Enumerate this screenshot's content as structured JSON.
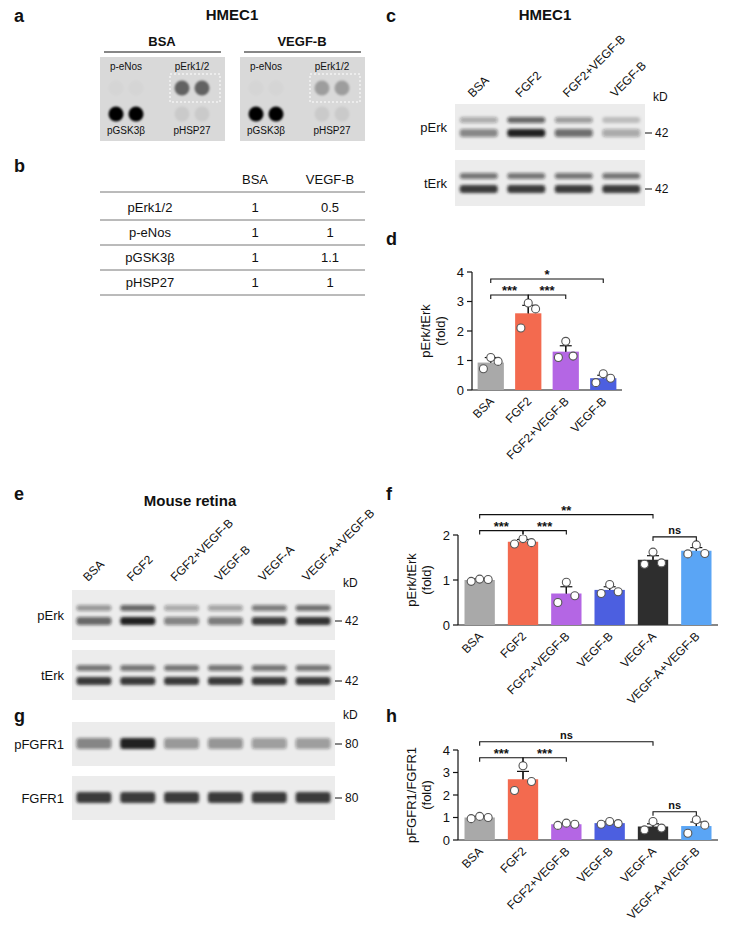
{
  "figure": {
    "a": {
      "panel_label": "a",
      "title": "HMEC1",
      "conditions": [
        "BSA",
        "VEGF-B"
      ],
      "spots": [
        "p-eNos",
        "pErk1/2",
        "pGSK3β",
        "pHSP27"
      ]
    },
    "b": {
      "panel_label": "b",
      "columns": [
        "BSA",
        "VEGF-B"
      ],
      "rows": [
        {
          "label": "pErk1/2",
          "values": [
            1,
            0.5
          ]
        },
        {
          "label": "p-eNos",
          "values": [
            1,
            1
          ]
        },
        {
          "label": "pGSK3β",
          "values": [
            1,
            1.1
          ]
        },
        {
          "label": "pHSP27",
          "values": [
            1,
            1
          ]
        }
      ]
    },
    "c": {
      "panel_label": "c",
      "title": "HMEC1",
      "lanes": [
        "BSA",
        "FGF2",
        "FGF2+VEGF-B",
        "VEGF-B"
      ],
      "rows": [
        {
          "label": "pErk",
          "size": 42
        },
        {
          "label": "tErk",
          "size": 42
        }
      ],
      "unit": "kD"
    },
    "e": {
      "panel_label": "e",
      "title": "Mouse retina",
      "lanes": [
        "BSA",
        "FGF2",
        "FGF2+VEGF-B",
        "VEGF-B",
        "VEGF-A",
        "VEGF-A+VEGF-B"
      ],
      "rows": [
        {
          "label": "pErk",
          "size": 42
        },
        {
          "label": "tErk",
          "size": 42
        }
      ],
      "unit": "kD"
    },
    "g": {
      "panel_label": "g",
      "rows": [
        {
          "label": "pFGFR1",
          "size": 80
        },
        {
          "label": "FGFR1",
          "size": 80
        }
      ],
      "unit": "kD"
    }
  },
  "chart_data": [
    {
      "type": "bar",
      "panel_label": "d",
      "y_label": [
        "pErk/tErk",
        "(fold)"
      ],
      "categories": [
        "BSA",
        "FGF2",
        "FGF2+VEGF-B",
        "VEGF-B"
      ],
      "values": [
        0.93,
        2.6,
        1.3,
        0.4
      ],
      "errors": [
        0.17,
        0.27,
        0.2,
        0.1
      ],
      "points": [
        [
          0.72,
          1.1,
          0.97
        ],
        [
          2.1,
          2.95,
          2.75
        ],
        [
          1.1,
          1.65,
          1.15
        ],
        [
          0.25,
          0.55,
          0.4
        ]
      ],
      "colors": [
        "#a9a9a9",
        "#f36a4f",
        "#b466e4",
        "#4c5fe0"
      ],
      "ylim": [
        0,
        4
      ],
      "yticks": [
        0,
        1,
        2,
        3,
        4
      ],
      "annotations": [
        {
          "between": [
            "BSA",
            "FGF2"
          ],
          "text": "***"
        },
        {
          "between": [
            "FGF2",
            "FGF2+VEGF-B"
          ],
          "text": "***"
        },
        {
          "between": [
            "BSA",
            "VEGF-B"
          ],
          "text": "*"
        }
      ]
    },
    {
      "type": "bar",
      "panel_label": "f",
      "y_label": [
        "pErk/tErk",
        "(fold)"
      ],
      "categories": [
        "BSA",
        "FGF2",
        "FGF2+VEGF-B",
        "VEGF-B",
        "VEGF-A",
        "VEGF-A+VEGF-B"
      ],
      "values": [
        1.0,
        1.85,
        0.7,
        0.78,
        1.45,
        1.65
      ],
      "errors": [
        0.03,
        0.05,
        0.15,
        0.07,
        0.09,
        0.07
      ],
      "points": [
        [
          0.97,
          1.02,
          1.01
        ],
        [
          1.8,
          1.92,
          1.83
        ],
        [
          0.5,
          0.95,
          0.65
        ],
        [
          0.7,
          0.9,
          0.74
        ],
        [
          1.35,
          1.62,
          1.38
        ],
        [
          1.58,
          1.78,
          1.59
        ]
      ],
      "colors": [
        "#a9a9a9",
        "#f36a4f",
        "#b466e4",
        "#4c5fe0",
        "#2e2e2e",
        "#5aa5f5"
      ],
      "ylim": [
        0,
        2
      ],
      "yticks": [
        0,
        1,
        2
      ],
      "annotations": [
        {
          "between": [
            "BSA",
            "FGF2"
          ],
          "text": "***"
        },
        {
          "between": [
            "FGF2",
            "FGF2+VEGF-B"
          ],
          "text": "***"
        },
        {
          "between": [
            "BSA",
            "VEGF-A"
          ],
          "text": "**"
        },
        {
          "between": [
            "VEGF-A",
            "VEGF-A+VEGF-B"
          ],
          "text": "ns"
        }
      ]
    },
    {
      "type": "bar",
      "panel_label": "h",
      "y_label": [
        "pFGFR1/FGFR1",
        "(fold)"
      ],
      "categories": [
        "BSA",
        "FGF2",
        "FGF2+VEGF-B",
        "VEGF-B",
        "VEGF-A",
        "VEGF-A+VEGF-B"
      ],
      "values": [
        1.0,
        2.7,
        0.7,
        0.75,
        0.6,
        0.62
      ],
      "errors": [
        0.05,
        0.35,
        0.04,
        0.06,
        0.12,
        0.18
      ],
      "points": [
        [
          0.95,
          1.05,
          1.0
        ],
        [
          2.2,
          3.3,
          2.6
        ],
        [
          0.65,
          0.75,
          0.7
        ],
        [
          0.7,
          0.82,
          0.73
        ],
        [
          0.45,
          0.82,
          0.53
        ],
        [
          0.3,
          0.9,
          0.66
        ]
      ],
      "colors": [
        "#a9a9a9",
        "#f36a4f",
        "#b466e4",
        "#4c5fe0",
        "#2e2e2e",
        "#5aa5f5"
      ],
      "ylim": [
        0,
        4
      ],
      "yticks": [
        0,
        1,
        2,
        3,
        4
      ],
      "annotations": [
        {
          "between": [
            "BSA",
            "FGF2"
          ],
          "text": "***"
        },
        {
          "between": [
            "FGF2",
            "FGF2+VEGF-B"
          ],
          "text": "***"
        },
        {
          "between": [
            "BSA",
            "VEGF-A"
          ],
          "text": "ns"
        },
        {
          "between": [
            "VEGF-A",
            "VEGF-A+VEGF-B"
          ],
          "text": "ns"
        }
      ]
    }
  ]
}
